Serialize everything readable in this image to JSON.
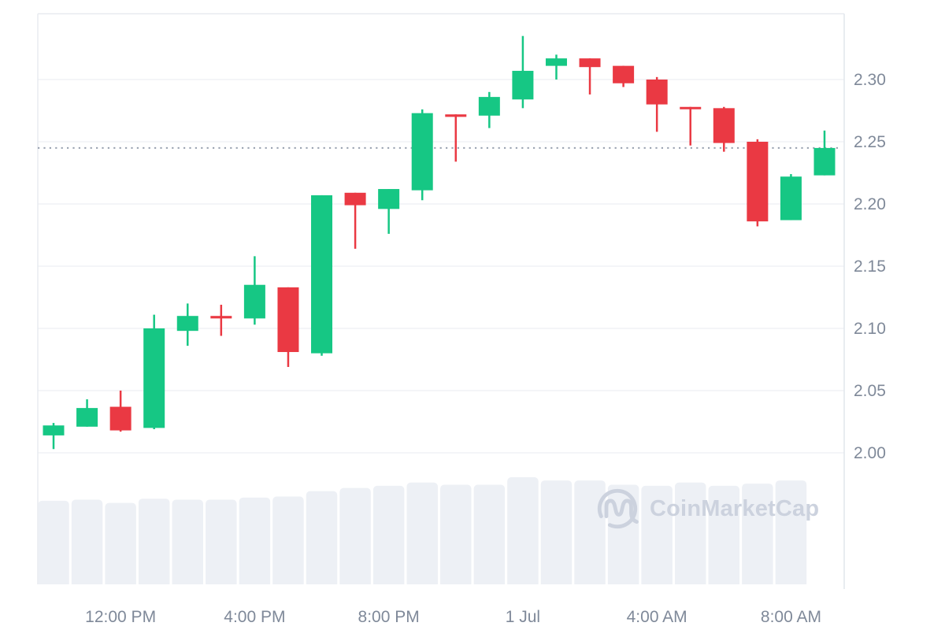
{
  "chart_data": {
    "type": "candlestick",
    "title": "",
    "watermark": "CoinMarketCap",
    "grid": "horizontal-only",
    "legend": null,
    "current_price_line": 2.245,
    "y_axis": {
      "side": "right",
      "ticks": [
        {
          "label": "2.30",
          "value": 2.3
        },
        {
          "label": "2.25",
          "value": 2.25
        },
        {
          "label": "2.20",
          "value": 2.2
        },
        {
          "label": "2.15",
          "value": 2.15
        },
        {
          "label": "2.10",
          "value": 2.1
        },
        {
          "label": "2.05",
          "value": 2.05
        },
        {
          "label": "2.00",
          "value": 2.0
        }
      ],
      "range": [
        1.995,
        2.353
      ]
    },
    "x_axis": {
      "labels": [
        {
          "text": "12:00 PM",
          "candle_index": 2
        },
        {
          "text": "4:00 PM",
          "candle_index": 6
        },
        {
          "text": "8:00 PM",
          "candle_index": 10
        },
        {
          "text": "1 Jul",
          "candle_index": 14
        },
        {
          "text": "4:00 AM",
          "candle_index": 18
        },
        {
          "text": "8:00 AM",
          "candle_index": 22
        }
      ]
    },
    "candles": [
      {
        "open": 2.014,
        "high": 2.024,
        "low": 2.003,
        "close": 2.022,
        "volume": 0.78
      },
      {
        "open": 2.021,
        "high": 2.043,
        "low": 2.021,
        "close": 2.036,
        "volume": 0.79
      },
      {
        "open": 2.037,
        "high": 2.05,
        "low": 2.017,
        "close": 2.018,
        "volume": 0.76
      },
      {
        "open": 2.02,
        "high": 2.111,
        "low": 2.019,
        "close": 2.1,
        "volume": 0.8
      },
      {
        "open": 2.098,
        "high": 2.12,
        "low": 2.086,
        "close": 2.11,
        "volume": 0.79
      },
      {
        "open": 2.11,
        "high": 2.119,
        "low": 2.094,
        "close": 2.108,
        "volume": 0.79
      },
      {
        "open": 2.108,
        "high": 2.158,
        "low": 2.103,
        "close": 2.135,
        "volume": 0.81
      },
      {
        "open": 2.133,
        "high": 2.133,
        "low": 2.069,
        "close": 2.081,
        "volume": 0.82
      },
      {
        "open": 2.08,
        "high": 2.207,
        "low": 2.078,
        "close": 2.207,
        "volume": 0.87
      },
      {
        "open": 2.209,
        "high": 2.209,
        "low": 2.164,
        "close": 2.199,
        "volume": 0.9
      },
      {
        "open": 2.196,
        "high": 2.212,
        "low": 2.176,
        "close": 2.212,
        "volume": 0.92
      },
      {
        "open": 2.211,
        "high": 2.276,
        "low": 2.203,
        "close": 2.273,
        "volume": 0.95
      },
      {
        "open": 2.272,
        "high": 2.272,
        "low": 2.234,
        "close": 2.27,
        "volume": 0.93
      },
      {
        "open": 2.271,
        "high": 2.29,
        "low": 2.261,
        "close": 2.286,
        "volume": 0.93
      },
      {
        "open": 2.284,
        "high": 2.335,
        "low": 2.277,
        "close": 2.307,
        "volume": 1.0
      },
      {
        "open": 2.311,
        "high": 2.32,
        "low": 2.3,
        "close": 2.317,
        "volume": 0.97
      },
      {
        "open": 2.317,
        "high": 2.317,
        "low": 2.288,
        "close": 2.31,
        "volume": 0.97
      },
      {
        "open": 2.311,
        "high": 2.311,
        "low": 2.294,
        "close": 2.297,
        "volume": 0.93
      },
      {
        "open": 2.3,
        "high": 2.302,
        "low": 2.258,
        "close": 2.28,
        "volume": 0.92
      },
      {
        "open": 2.278,
        "high": 2.278,
        "low": 2.247,
        "close": 2.277,
        "volume": 0.95
      },
      {
        "open": 2.277,
        "high": 2.278,
        "low": 2.242,
        "close": 2.249,
        "volume": 0.92
      },
      {
        "open": 2.25,
        "high": 2.252,
        "low": 2.182,
        "close": 2.186,
        "volume": 0.94
      },
      {
        "open": 2.187,
        "high": 2.224,
        "low": 2.187,
        "close": 2.222,
        "volume": 0.97
      },
      {
        "open": 2.223,
        "high": 2.259,
        "low": 2.223,
        "close": 2.245,
        "volume": 0.0
      }
    ],
    "colors": {
      "up": "#16c784",
      "down": "#ea3943",
      "grid": "#f0f2f5",
      "border": "#e7eaef",
      "axis_separator": "#e3e7ed",
      "axis_text": "#7f8999",
      "volume_bar": "#edf0f5",
      "dotted_line": "#97a0af",
      "watermark": "#ccd2de"
    }
  }
}
